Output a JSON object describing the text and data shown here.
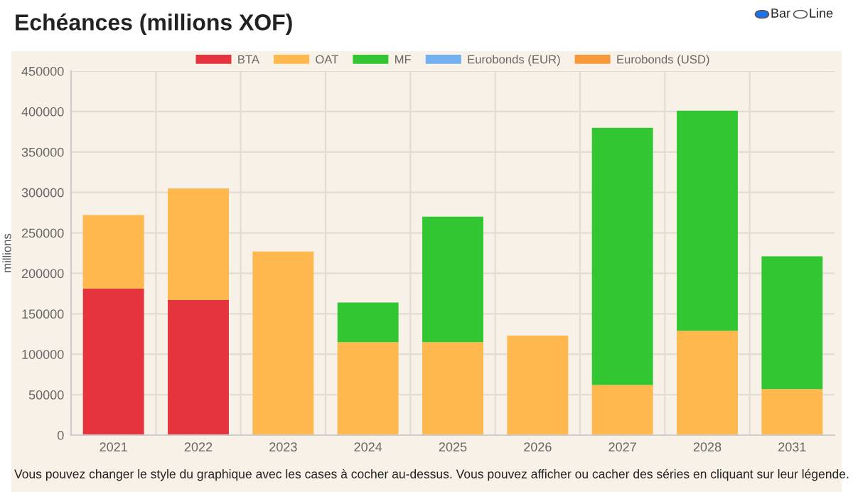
{
  "chart_data": {
    "type": "bar",
    "title": "Echéances (millions XOF)",
    "ylabel": "millions",
    "stacked": true,
    "categories": [
      "2021",
      "2022",
      "2023",
      "2024",
      "2025",
      "2026",
      "2027",
      "2028",
      "2031"
    ],
    "series": [
      {
        "name": "BTA",
        "color": "#e6343f",
        "values": [
          181000,
          167000,
          null,
          null,
          null,
          null,
          null,
          null,
          null
        ]
      },
      {
        "name": "OAT",
        "color": "#ffb84d",
        "values": [
          91000,
          138000,
          227000,
          115000,
          115000,
          123000,
          62000,
          129000,
          57000
        ]
      },
      {
        "name": "MF",
        "color": "#33c633",
        "values": [
          null,
          null,
          null,
          49000,
          155000,
          null,
          318000,
          272000,
          164000
        ]
      },
      {
        "name": "Eurobonds (EUR)",
        "color": "#72b0ef",
        "values": [
          null,
          null,
          null,
          null,
          null,
          null,
          null,
          null,
          null
        ]
      },
      {
        "name": "Eurobonds (USD)",
        "color": "#f7993a",
        "values": [
          null,
          null,
          null,
          null,
          null,
          null,
          null,
          null,
          null
        ]
      }
    ],
    "ylim": [
      0,
      450000
    ],
    "yticks": [
      0,
      50000,
      100000,
      150000,
      200000,
      250000,
      300000,
      350000,
      400000,
      450000
    ],
    "grid": true,
    "legend": "top",
    "annotations": [
      "Vous pouvez changer le style du graphique avec les cases à cocher au-dessus. Vous pouvez afficher ou cacher des séries en cliquant sur leur légende.",
      "Bar",
      "Line"
    ]
  }
}
